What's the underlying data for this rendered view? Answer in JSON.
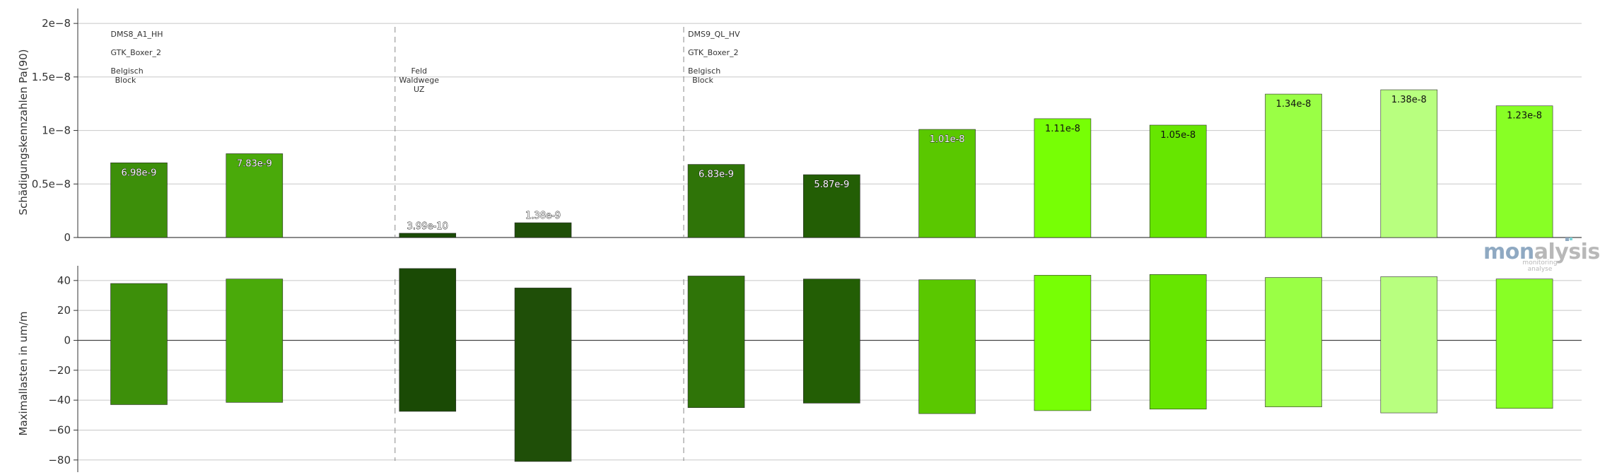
{
  "branding": {
    "logo_text_a": "mon",
    "logo_text_b": "alysis",
    "logo_sub": "monitoring analyse",
    "logo_color_a": "#8fa9c2",
    "logo_color_b": "#b8b8b8"
  },
  "chart_data": [
    {
      "type": "bar",
      "ylabel": "Schädigungskennzahlen Pa(90)",
      "ylim": [
        0,
        2.1e-08
      ],
      "yticks": [
        0,
        5e-09,
        1e-08,
        1.5e-08,
        2e-08
      ],
      "ytick_labels": [
        "0",
        "0.5e−8",
        "1e−8",
        "1.5e−8",
        "2e−8"
      ],
      "grid": true,
      "bars": [
        {
          "slot": 0,
          "value": 6.98e-09,
          "label": "6.98e-9",
          "color": "#3d8f0a"
        },
        {
          "slot": 1,
          "value": 7.83e-09,
          "label": "7.83e-9",
          "color": "#4aaa0a"
        },
        {
          "slot": 2.5,
          "value": 3.99e-10,
          "label": "3.99e-10",
          "color": "#1a4a05"
        },
        {
          "slot": 3.5,
          "value": 1.38e-09,
          "label": "1.38e-9",
          "color": "#1f4f08"
        },
        {
          "slot": 5,
          "value": 6.83e-09,
          "label": "6.83e-9",
          "color": "#2f7408"
        },
        {
          "slot": 6,
          "value": 5.87e-09,
          "label": "5.87e-9",
          "color": "#235e05"
        },
        {
          "slot": 7,
          "value": 1.01e-08,
          "label": "1.01e-8",
          "color": "#5ac800"
        },
        {
          "slot": 8,
          "value": 1.11e-08,
          "label": "1.11e-8",
          "color": "#77ff05"
        },
        {
          "slot": 9,
          "value": 1.05e-08,
          "label": "1.05e-8",
          "color": "#66e600"
        },
        {
          "slot": 10,
          "value": 1.34e-08,
          "label": "1.34e-8",
          "color": "#9aff45"
        },
        {
          "slot": 11,
          "value": 1.38e-08,
          "label": "1.38e-8",
          "color": "#b8ff7f"
        },
        {
          "slot": 12,
          "value": 1.23e-08,
          "label": "1.23e-8",
          "color": "#88ff25"
        }
      ],
      "groups": [
        {
          "slot": 0,
          "lines": [
            "DMS8_A1_HH",
            "GTK_Boxer_2",
            "Belgisch",
            "Block"
          ]
        },
        {
          "slot": 2.5,
          "lines": [
            "Feld",
            "Waldwege",
            "UZ"
          ]
        },
        {
          "slot": 5,
          "lines": [
            "DMS9_QL_HV",
            "GTK_Boxer_2",
            "Belgisch",
            "Block"
          ]
        }
      ],
      "separators": [
        2.5,
        5
      ]
    },
    {
      "type": "bar",
      "ylabel": "Maximallasten in um/m",
      "ylim": [
        -82,
        47
      ],
      "yticks": [
        40,
        20,
        0,
        -20,
        -40,
        -60,
        -80
      ],
      "ytick_labels": [
        "40",
        "20",
        "0",
        "−20",
        "−40",
        "−60",
        "−80"
      ],
      "grid": true,
      "bars": [
        {
          "slot": 0,
          "max": 38,
          "min": -43,
          "color": "#3d8f0a"
        },
        {
          "slot": 1,
          "max": 41,
          "min": -41.5,
          "color": "#4aaa0a"
        },
        {
          "slot": 2.5,
          "max": 48,
          "min": -47.5,
          "color": "#1a4a05"
        },
        {
          "slot": 3.5,
          "max": 35,
          "min": -81,
          "color": "#1f4f08"
        },
        {
          "slot": 5,
          "max": 43,
          "min": -45,
          "color": "#2f7408"
        },
        {
          "slot": 6,
          "max": 41,
          "min": -42,
          "color": "#235e05"
        },
        {
          "slot": 7,
          "max": 40.5,
          "min": -49,
          "color": "#5ac800"
        },
        {
          "slot": 8,
          "max": 43.5,
          "min": -47,
          "color": "#77ff05"
        },
        {
          "slot": 9,
          "max": 44,
          "min": -46,
          "color": "#66e600"
        },
        {
          "slot": 10,
          "max": 42,
          "min": -44.5,
          "color": "#9aff45"
        },
        {
          "slot": 11,
          "max": 42.5,
          "min": -48.5,
          "color": "#b8ff7f"
        },
        {
          "slot": 12,
          "max": 41,
          "min": -45.5,
          "color": "#88ff25"
        }
      ],
      "separators": [
        2.5,
        5
      ]
    }
  ]
}
